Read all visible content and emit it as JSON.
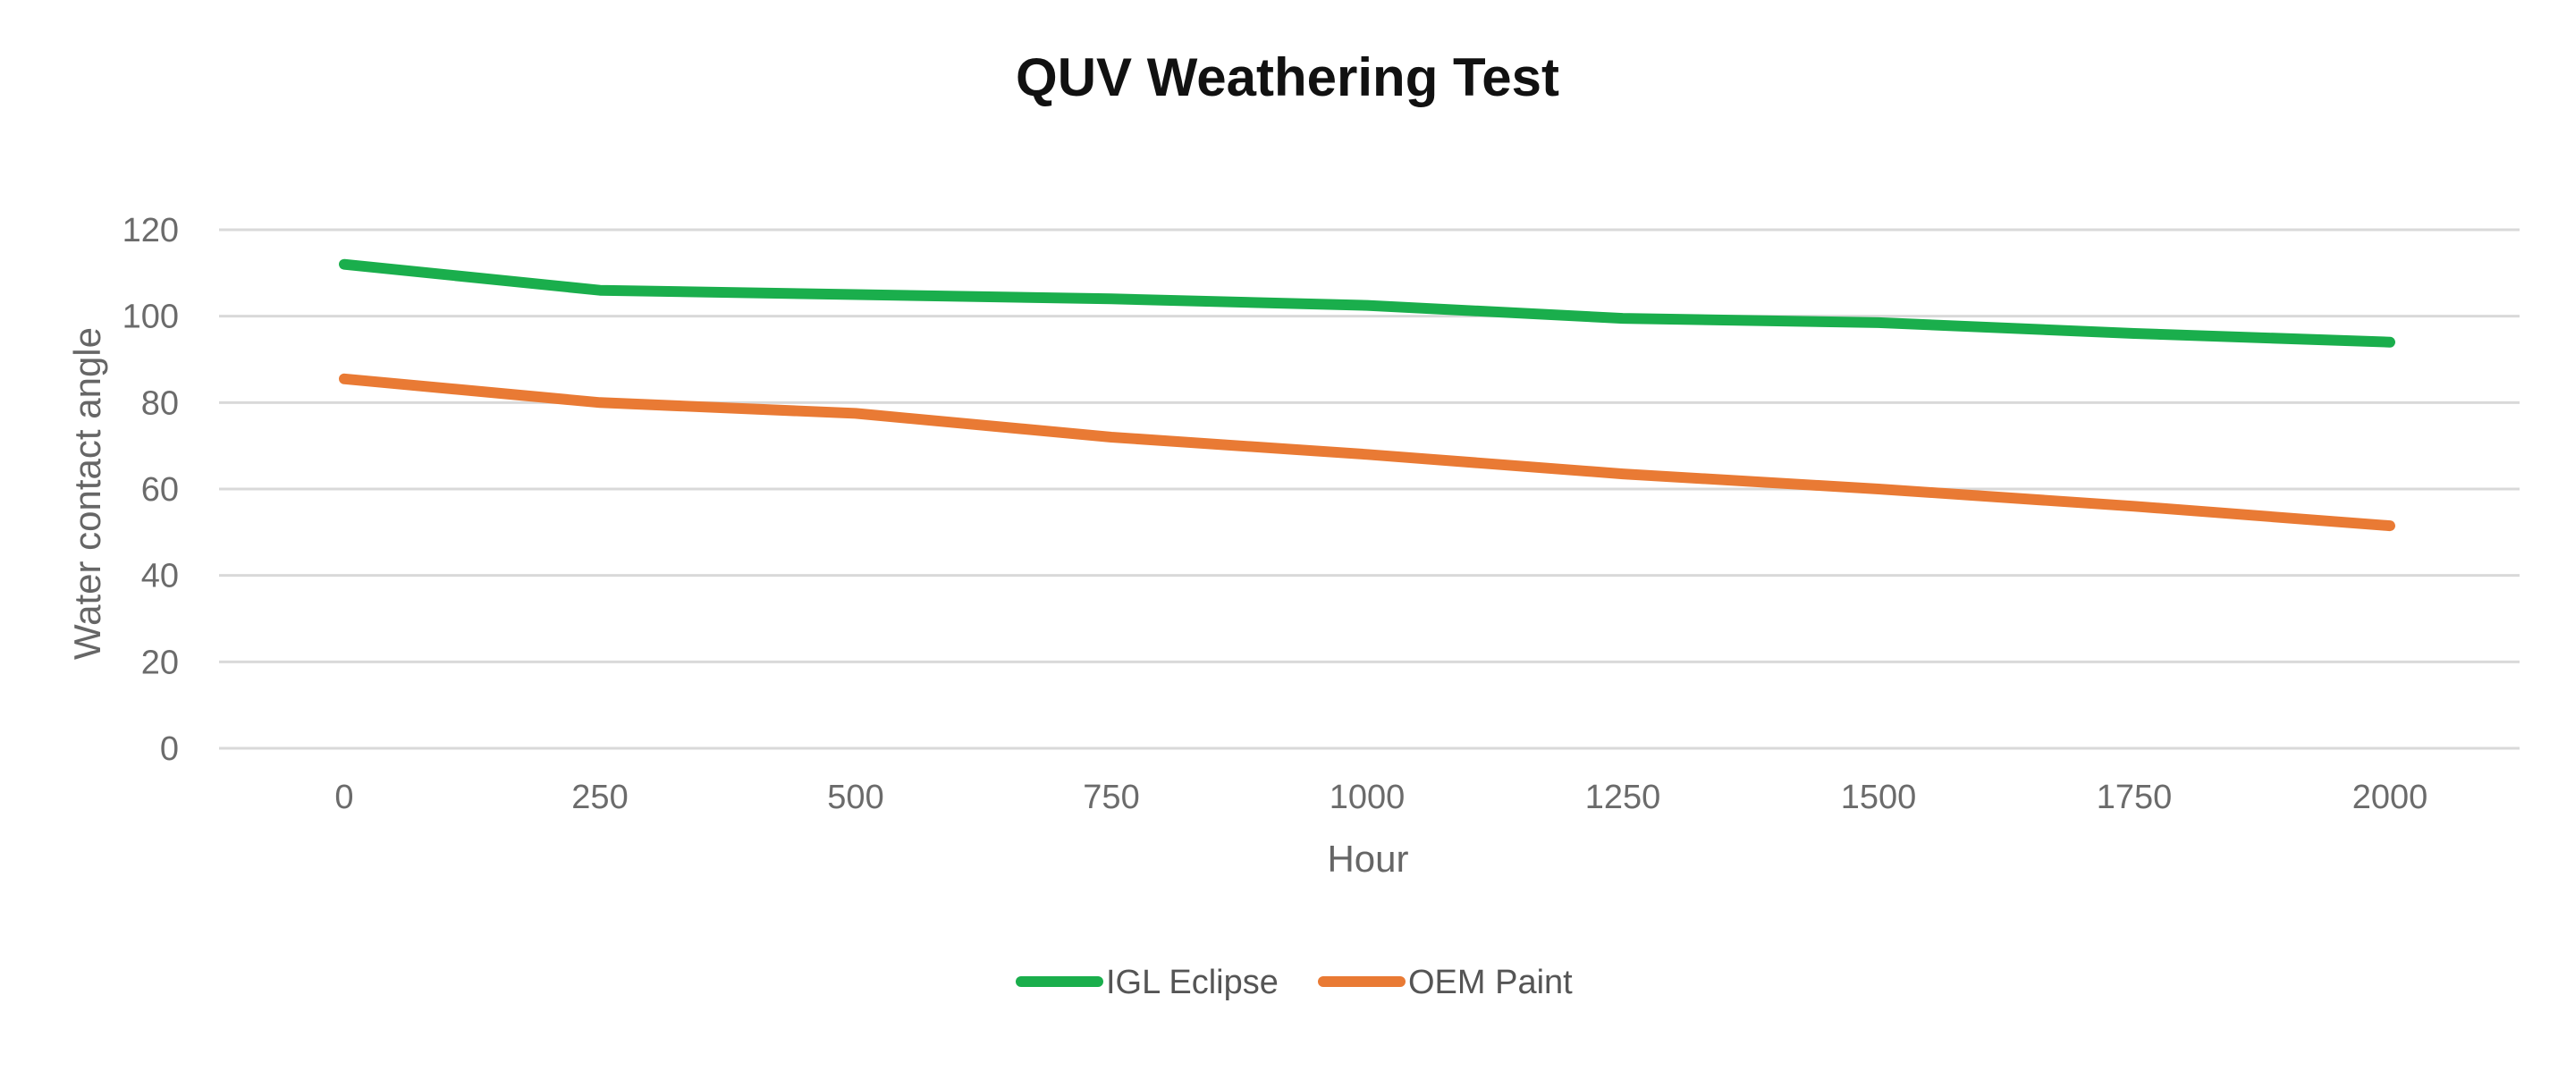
{
  "chart_data": {
    "type": "line",
    "title": "QUV Weathering Test",
    "xlabel": "Hour",
    "ylabel": "Water contact angle",
    "x": [
      0,
      250,
      500,
      750,
      1000,
      1250,
      1500,
      1750,
      2000
    ],
    "x_ticks": [
      "0",
      "250",
      "500",
      "750",
      "1000",
      "1250",
      "1500",
      "1750",
      "2000"
    ],
    "y_ticks": [
      "0",
      "20",
      "40",
      "60",
      "80",
      "100",
      "120"
    ],
    "ylim": [
      0,
      120
    ],
    "grid": true,
    "legend_position": "bottom",
    "series": [
      {
        "name": "IGL Eclipse",
        "color": "#1aae4c",
        "values": [
          112,
          106,
          105,
          104,
          102.5,
          99.5,
          98.5,
          96,
          94
        ]
      },
      {
        "name": "OEM Paint",
        "color": "#e97a34",
        "values": [
          85.5,
          80,
          77.5,
          72,
          68,
          63.5,
          60,
          56,
          51.5
        ]
      }
    ]
  }
}
